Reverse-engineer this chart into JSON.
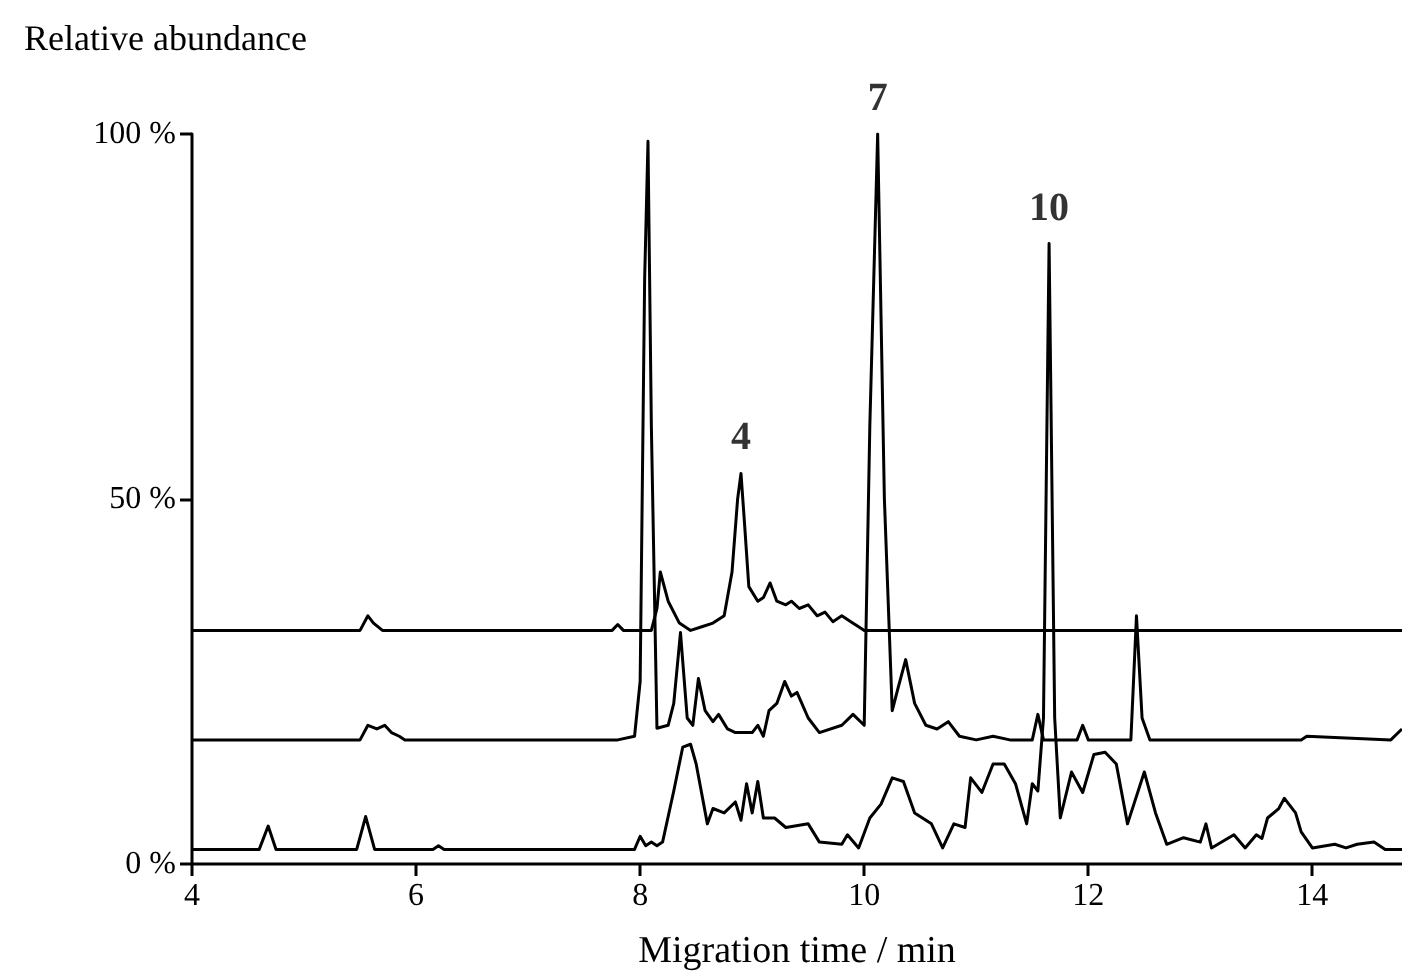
{
  "chart_data": {
    "type": "line",
    "ylabel": "Relative abundance",
    "xlabel": "Migration time / min",
    "xlim": [
      4,
      14.8
    ],
    "xticks": [
      4,
      6,
      8,
      10,
      12,
      14
    ],
    "ylim": [
      0,
      100
    ],
    "yticks": [
      {
        "value": 0,
        "label": "0 %"
      },
      {
        "value": 50,
        "label": "50 %"
      },
      {
        "value": 100,
        "label": "100 %"
      }
    ],
    "marker": "none",
    "line_style": "solid",
    "annotations": [
      {
        "text": "4",
        "x": 8.9,
        "y": 53.5
      },
      {
        "text": "7",
        "x": 10.12,
        "y": 100
      },
      {
        "text": "10",
        "x": 11.65,
        "y": 85
      }
    ],
    "series": [
      {
        "color": "#000000",
        "x": [
          4,
          5.5,
          5.57,
          5.62,
          5.7,
          7.75,
          7.8,
          7.85,
          8.1,
          8.15,
          8.18,
          8.25,
          8.35,
          8.45,
          8.55,
          8.65,
          8.75,
          8.82,
          8.87,
          8.9,
          8.93,
          8.97,
          9.05,
          9.1,
          9.16,
          9.22,
          9.3,
          9.35,
          9.42,
          9.5,
          9.58,
          9.65,
          9.72,
          9.8,
          9.88,
          9.95,
          10,
          14.8
        ],
        "values": [
          32,
          32,
          34,
          33,
          32,
          32,
          32.8,
          32,
          32,
          35,
          40,
          36,
          33,
          32,
          32.5,
          33,
          34,
          40,
          50,
          53.5,
          47,
          38,
          36,
          36.5,
          38.5,
          36,
          35.5,
          36,
          35,
          35.5,
          34,
          34.5,
          33.2,
          34,
          33.2,
          32.5,
          32,
          32
        ]
      },
      {
        "color": "#000000",
        "x": [
          4,
          5.5,
          5.57,
          5.65,
          5.72,
          5.78,
          5.85,
          5.9,
          7.8,
          7.95,
          8.0,
          8.04,
          8.07,
          8.1,
          8.15,
          8.25,
          8.3,
          8.36,
          8.42,
          8.47,
          8.52,
          8.58,
          8.65,
          8.7,
          8.78,
          8.85,
          9.0,
          9.05,
          9.1,
          9.15,
          9.22,
          9.29,
          9.35,
          9.4,
          9.5,
          9.6,
          9.8,
          9.9,
          10.0,
          10.05,
          10.12,
          10.18,
          10.25,
          10.3,
          10.37,
          10.45,
          10.55,
          10.65,
          10.75,
          10.85,
          11.0,
          11.15,
          11.3,
          11.5,
          11.55,
          11.6,
          11.9,
          11.95,
          12.0,
          12.38,
          12.43,
          12.48,
          12.55,
          13.9,
          13.95,
          14.7,
          14.8
        ],
        "values": [
          17,
          17,
          19,
          18.5,
          19,
          18,
          17.5,
          17,
          17,
          17.5,
          25,
          80,
          99,
          60,
          18.6,
          19,
          22,
          31.7,
          20,
          19,
          25.4,
          21,
          19.5,
          20.5,
          18.5,
          18,
          18,
          19,
          17.5,
          21,
          22,
          25,
          23,
          23.5,
          20,
          18,
          19,
          20.5,
          19,
          60,
          100,
          50,
          21,
          24,
          28,
          22,
          19,
          18.5,
          19.5,
          17.5,
          17,
          17.5,
          17,
          17,
          20.5,
          17,
          17,
          19,
          17,
          17,
          34,
          20,
          17,
          17,
          17.5,
          17,
          18.5
        ]
      },
      {
        "color": "#000000",
        "x": [
          4,
          4.6,
          4.68,
          4.75,
          5.47,
          5.55,
          5.63,
          6.15,
          6.2,
          6.25,
          7.95,
          8.0,
          8.05,
          8.1,
          8.15,
          8.2,
          8.3,
          8.38,
          8.45,
          8.5,
          8.6,
          8.65,
          8.75,
          8.85,
          8.9,
          8.95,
          9.0,
          9.05,
          9.1,
          9.2,
          9.3,
          9.5,
          9.6,
          9.8,
          9.85,
          9.95,
          10.05,
          10.15,
          10.25,
          10.35,
          10.45,
          10.6,
          10.7,
          10.8,
          10.9,
          10.95,
          11.05,
          11.15,
          11.25,
          11.35,
          11.45,
          11.5,
          11.55,
          11.6,
          11.65,
          11.7,
          11.75,
          11.85,
          11.95,
          12.05,
          12.15,
          12.25,
          12.35,
          12.5,
          12.6,
          12.7,
          12.85,
          13.0,
          13.05,
          13.1,
          13.3,
          13.4,
          13.5,
          13.55,
          13.6,
          13.7,
          13.75,
          13.85,
          13.9,
          14.0,
          14.2,
          14.3,
          14.4,
          14.55,
          14.65,
          14.8
        ],
        "values": [
          2,
          2,
          5.2,
          2,
          2,
          6.5,
          2,
          2,
          2.5,
          2,
          2,
          3.8,
          2.5,
          3,
          2.5,
          3,
          10,
          16,
          16.4,
          13.7,
          5.5,
          7.6,
          7,
          8.5,
          6,
          11,
          7,
          11.3,
          6.3,
          6.3,
          5,
          5.5,
          3,
          2.7,
          4,
          2.2,
          6.3,
          8.2,
          11.8,
          11.3,
          7,
          5.5,
          2.2,
          5.5,
          5,
          11.8,
          9.8,
          13.7,
          13.7,
          11,
          5.5,
          11,
          10,
          20,
          85,
          20,
          6.3,
          12.6,
          9.8,
          15,
          15.3,
          13.7,
          5.5,
          12.6,
          7,
          2.7,
          3.6,
          3,
          5.5,
          2.2,
          4,
          2.2,
          4,
          3.5,
          6.3,
          7.6,
          9,
          7,
          4.4,
          2.2,
          2.7,
          2.2,
          2.7,
          3,
          2,
          2
        ]
      }
    ]
  }
}
